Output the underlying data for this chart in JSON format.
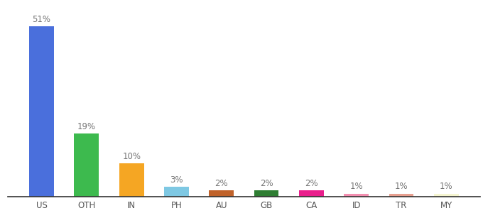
{
  "categories": [
    "US",
    "OTH",
    "IN",
    "PH",
    "AU",
    "GB",
    "CA",
    "ID",
    "TR",
    "MY"
  ],
  "values": [
    51,
    19,
    10,
    3,
    2,
    2,
    2,
    1,
    1,
    1
  ],
  "bar_colors": [
    "#4a6fdc",
    "#3dba4e",
    "#f5a623",
    "#7ec8e3",
    "#c0622a",
    "#2e7d32",
    "#e91e8c",
    "#f48fb1",
    "#e8a090",
    "#f5f5d0"
  ],
  "ylim": [
    0,
    58
  ],
  "label_fontsize": 8.5,
  "tick_fontsize": 8.5,
  "bar_width": 0.55,
  "background_color": "#ffffff",
  "label_color": "#777777",
  "tick_color": "#555555"
}
